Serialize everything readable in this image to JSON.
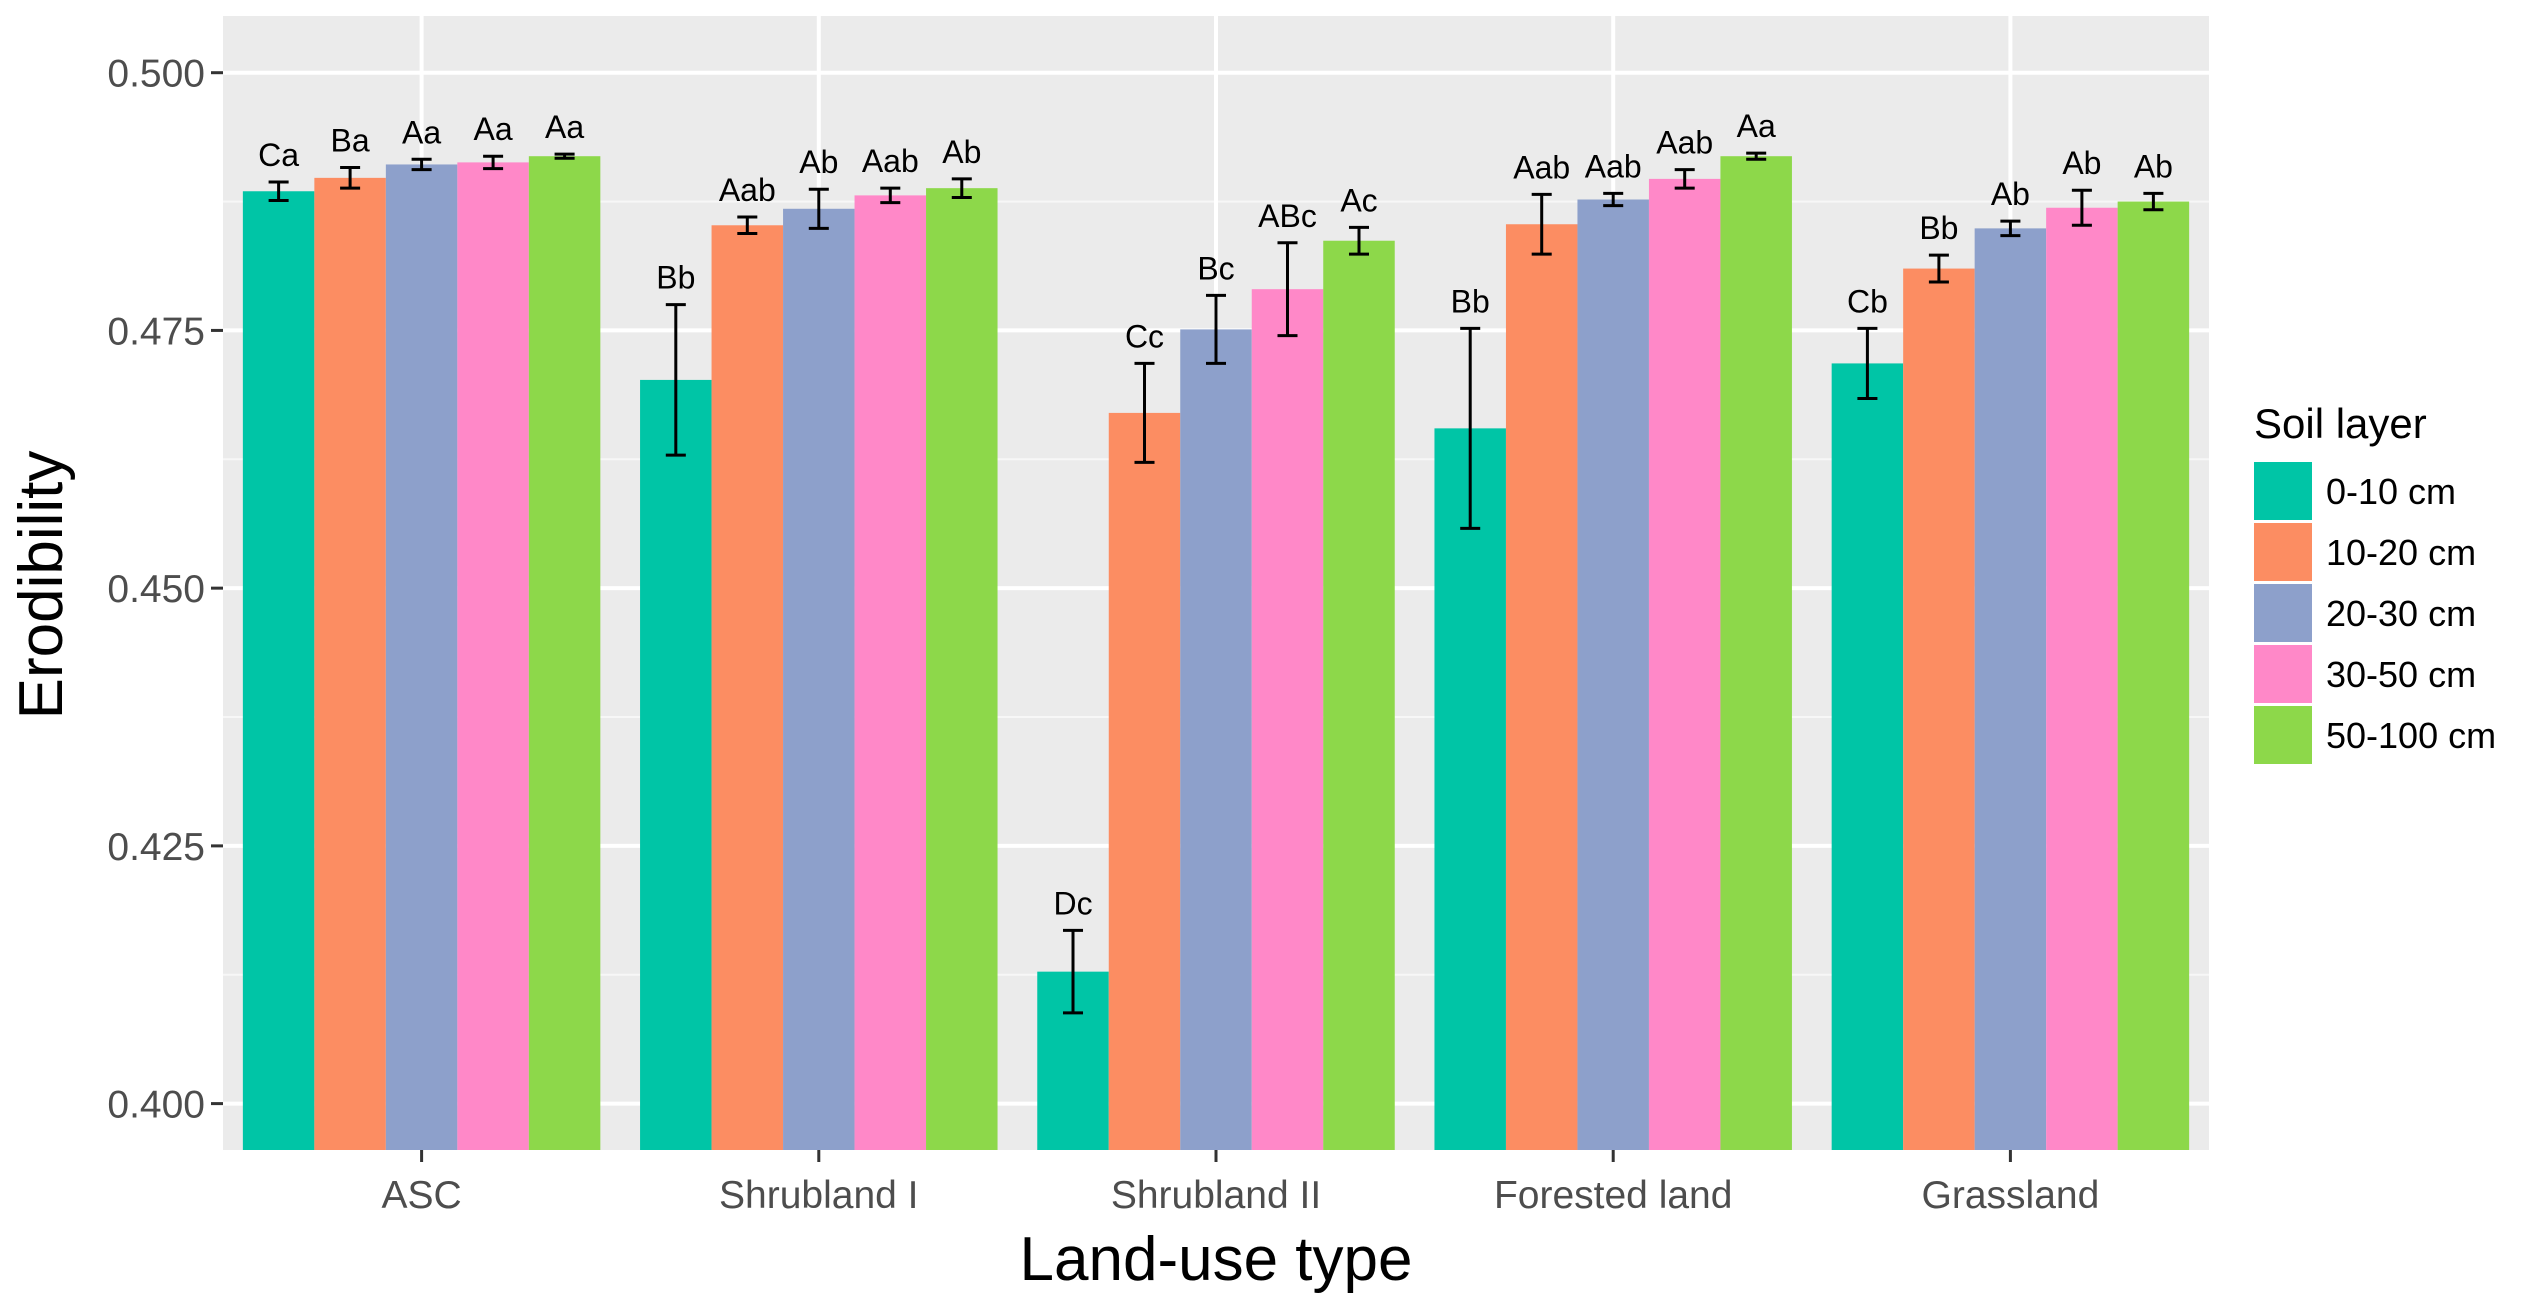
{
  "chart_data": {
    "type": "bar",
    "title": "",
    "xlabel": "Land-use type",
    "ylabel": "Erodibility",
    "ylim": [
      0.3955,
      0.5055
    ],
    "yticks": [
      "0.400",
      "0.425",
      "0.450",
      "0.475",
      "0.500"
    ],
    "ytick_values": [
      0.4,
      0.425,
      0.45,
      0.475,
      0.5
    ],
    "grid": true,
    "categories": [
      "ASC",
      "Shrubland I",
      "Shrubland II",
      "Forested land",
      "Grassland"
    ],
    "legend": {
      "title": "Soil layer",
      "position": "right"
    },
    "series": [
      {
        "name": "0-10 cm",
        "color": "#00C5A6",
        "values": [
          0.4885,
          0.4702,
          0.4128,
          0.4655,
          0.4718
        ],
        "errors": [
          0.0009,
          0.0073,
          0.004,
          0.0097,
          0.0034
        ],
        "labels": [
          "Ca",
          "Bb",
          "Dc",
          "Bb",
          "Cb"
        ]
      },
      {
        "name": "10-20 cm",
        "color": "#FC8D62",
        "values": [
          0.4898,
          0.4852,
          0.467,
          0.4853,
          0.481
        ],
        "errors": [
          0.001,
          0.0008,
          0.0048,
          0.0029,
          0.0013
        ],
        "labels": [
          "Ba",
          "Aab",
          "Cc",
          "Aab",
          "Bb"
        ]
      },
      {
        "name": "20-30 cm",
        "color": "#8DA0CB",
        "values": [
          0.4911,
          0.4868,
          0.4751,
          0.4877,
          0.4849
        ],
        "errors": [
          0.0005,
          0.0019,
          0.0033,
          0.0006,
          0.0007
        ],
        "labels": [
          "Aa",
          "Ab",
          "Bc",
          "Aab",
          "Ab"
        ]
      },
      {
        "name": "30-50 cm",
        "color": "#FF88C8",
        "values": [
          0.4913,
          0.4881,
          0.479,
          0.4897,
          0.4869
        ],
        "errors": [
          0.0006,
          0.0007,
          0.0045,
          0.0009,
          0.0017
        ],
        "labels": [
          "Aa",
          "Aab",
          "ABc",
          "Aab",
          "Ab"
        ]
      },
      {
        "name": "50-100 cm",
        "color": "#8DD84A",
        "values": [
          0.4919,
          0.4888,
          0.4837,
          0.4919,
          0.4875
        ],
        "errors": [
          0.0002,
          0.0009,
          0.0013,
          0.0003,
          0.0008
        ],
        "labels": [
          "Aa",
          "Ab",
          "Ac",
          "Aa",
          "Ab"
        ]
      }
    ]
  }
}
